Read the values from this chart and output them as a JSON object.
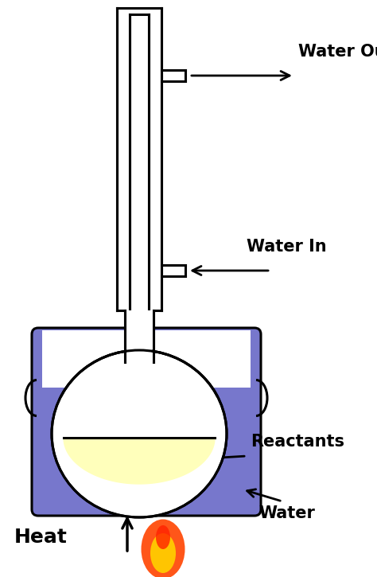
{
  "bg_color": "#ffffff",
  "flask_color": "#ffffff",
  "water_bath_color": "#7777cc",
  "reactants_color": "#ffffbb",
  "label_water_out": "Water Out",
  "label_water_in": "Water In",
  "label_reactants": "Reactants",
  "label_water": "Water",
  "label_heat": "Heat",
  "font_size_labels": 15,
  "font_size_heat": 18,
  "arrow_color": "#000000",
  "line_color": "#000000",
  "line_width": 2.2,
  "fig_w": 4.74,
  "fig_h": 7.25,
  "dpi": 100
}
